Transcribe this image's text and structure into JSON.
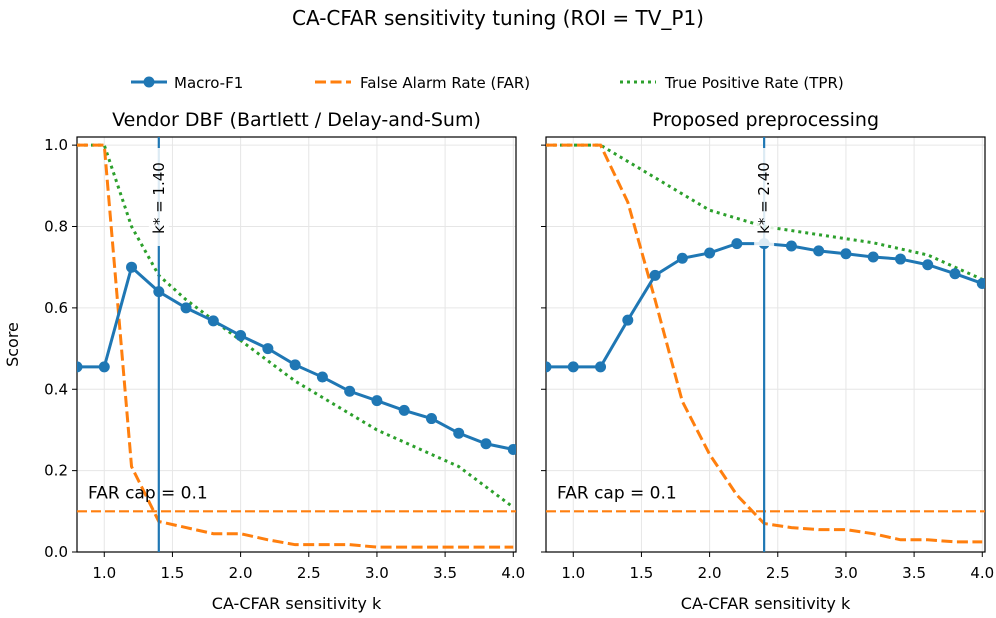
{
  "figure": {
    "title": "CA-CFAR sensitivity tuning (ROI = TV_P1)"
  },
  "legend": {
    "placement": "top-center",
    "items": [
      {
        "label": "Macro-F1",
        "style": "solid-marker",
        "color": "#1f77b4"
      },
      {
        "label": "False Alarm Rate (FAR)",
        "style": "dashed",
        "color": "#ff7f0e"
      },
      {
        "label": "True Positive Rate (TPR)",
        "style": "dotted",
        "color": "#2ca02c"
      }
    ]
  },
  "colors": {
    "f1": "#1f77b4",
    "far": "#ff7f0e",
    "tpr": "#2ca02c",
    "grid": "#e6e6e6"
  },
  "chart_data": [
    {
      "type": "line",
      "title": "Vendor DBF (Bartlett / Delay-and-Sum)",
      "xlabel": "CA-CFAR sensitivity k",
      "ylabel": "Score",
      "xlim": [
        0.8,
        4.02
      ],
      "ylim": [
        0.0,
        1.02
      ],
      "xticks": [
        1.0,
        1.5,
        2.0,
        2.5,
        3.0,
        3.5,
        4.0
      ],
      "xtick_labels": [
        "1.0",
        "1.5",
        "2.0",
        "2.5",
        "3.0",
        "3.5",
        "4.0"
      ],
      "yticks": [
        0.0,
        0.2,
        0.4,
        0.6,
        0.8,
        1.0
      ],
      "ytick_labels": [
        "0.0",
        "0.2",
        "0.4",
        "0.6",
        "0.8",
        "1.0"
      ],
      "grid": true,
      "x": [
        0.8,
        1.0,
        1.2,
        1.4,
        1.6,
        1.8,
        2.0,
        2.2,
        2.4,
        2.6,
        2.8,
        3.0,
        3.2,
        3.4,
        3.6,
        3.8,
        4.0
      ],
      "series": [
        {
          "name": "Macro-F1",
          "values": [
            0.455,
            0.455,
            0.7,
            0.64,
            0.6,
            0.568,
            0.532,
            0.5,
            0.46,
            0.43,
            0.395,
            0.372,
            0.348,
            0.328,
            0.292,
            0.266,
            0.252
          ]
        },
        {
          "name": "False Alarm Rate (FAR)",
          "values": [
            1.0,
            1.0,
            0.21,
            0.075,
            0.06,
            0.045,
            0.045,
            0.03,
            0.018,
            0.018,
            0.018,
            0.012,
            0.012,
            0.012,
            0.012,
            0.012,
            0.012
          ]
        },
        {
          "name": "True Positive Rate (TPR)",
          "values": [
            1.0,
            1.0,
            0.8,
            0.68,
            0.62,
            0.57,
            0.52,
            0.47,
            0.42,
            0.38,
            0.34,
            0.3,
            0.27,
            0.24,
            0.21,
            0.16,
            0.11
          ]
        }
      ],
      "far_cap": {
        "value": 0.1,
        "label": "FAR cap = 0.1"
      },
      "k_star": {
        "value": 1.4,
        "label": "k* = 1.40"
      }
    },
    {
      "type": "line",
      "title": "Proposed preprocessing",
      "xlabel": "CA-CFAR sensitivity k",
      "ylabel": "",
      "xlim": [
        0.8,
        4.02
      ],
      "ylim": [
        0.0,
        1.02
      ],
      "xticks": [
        1.0,
        1.5,
        2.0,
        2.5,
        3.0,
        3.5,
        4.0
      ],
      "xtick_labels": [
        "1.0",
        "1.5",
        "2.0",
        "2.5",
        "3.0",
        "3.5",
        "4.0"
      ],
      "yticks": [
        0.0,
        0.2,
        0.4,
        0.6,
        0.8,
        1.0
      ],
      "ytick_labels": [],
      "grid": true,
      "x": [
        0.8,
        1.0,
        1.2,
        1.4,
        1.6,
        1.8,
        2.0,
        2.2,
        2.4,
        2.6,
        2.8,
        3.0,
        3.2,
        3.4,
        3.6,
        3.8,
        4.0
      ],
      "series": [
        {
          "name": "Macro-F1",
          "values": [
            0.455,
            0.455,
            0.455,
            0.57,
            0.68,
            0.722,
            0.735,
            0.758,
            0.758,
            0.752,
            0.74,
            0.733,
            0.725,
            0.72,
            0.706,
            0.684,
            0.66
          ]
        },
        {
          "name": "False Alarm Rate (FAR)",
          "values": [
            1.0,
            1.0,
            1.0,
            0.86,
            0.62,
            0.37,
            0.24,
            0.14,
            0.07,
            0.06,
            0.055,
            0.055,
            0.045,
            0.03,
            0.03,
            0.025,
            0.025
          ]
        },
        {
          "name": "True Positive Rate (TPR)",
          "values": [
            1.0,
            1.0,
            1.0,
            0.96,
            0.92,
            0.88,
            0.84,
            0.82,
            0.8,
            0.79,
            0.78,
            0.77,
            0.76,
            0.745,
            0.73,
            0.7,
            0.67
          ]
        }
      ],
      "far_cap": {
        "value": 0.1,
        "label": "FAR cap = 0.1"
      },
      "k_star": {
        "value": 2.4,
        "label": "k* = 2.40"
      }
    }
  ]
}
